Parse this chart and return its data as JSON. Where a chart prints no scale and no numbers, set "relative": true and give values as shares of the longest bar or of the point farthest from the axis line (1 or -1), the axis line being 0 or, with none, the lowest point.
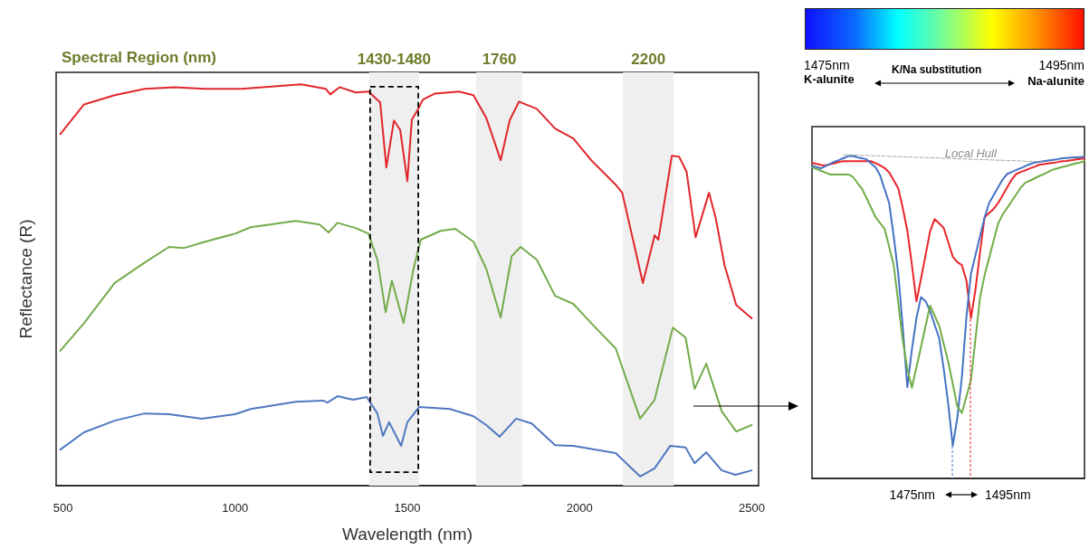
{
  "chart_data": [
    {
      "type": "line",
      "relative": true,
      "xlabel": "Wavelength (nm)",
      "ylabel": "Reflectance (R)",
      "xlim": [
        480,
        2520
      ],
      "xticks": [
        500,
        1000,
        1500,
        2000,
        2500
      ],
      "annotations": [
        "Spectral Region (nm)"
      ],
      "bands": [
        {
          "axis": "x",
          "from": 1389,
          "to": 1534,
          "label": "1430-1480",
          "color": "#efefef"
        },
        {
          "axis": "x",
          "from": 1700,
          "to": 1834,
          "label": "1760",
          "color": "#efefef"
        },
        {
          "axis": "x",
          "from": 2126,
          "to": 2274,
          "label": "2200",
          "color": "#efefef"
        }
      ],
      "series": [
        {
          "color": "#e0262b",
          "x": [
            492,
            561,
            650,
            737,
            824,
            913,
            1018,
            1192,
            1263,
            1276,
            1303,
            1350,
            1387,
            1421,
            1439,
            1461,
            1479,
            1500,
            1513,
            1532,
            1545,
            1579,
            1650,
            1692,
            1729,
            1771,
            1797,
            1824,
            1876,
            1929,
            1982,
            2034,
            2105,
            2124,
            2184,
            2218,
            2229,
            2268,
            2289,
            2311,
            2337,
            2376,
            2395,
            2421,
            2455,
            2500
          ],
          "values": [
            0.876,
            0.95,
            0.973,
            0.989,
            0.993,
            0.989,
            0.989,
            1.0,
            0.989,
            0.975,
            0.993,
            0.98,
            0.982,
            0.955,
            0.793,
            0.91,
            0.887,
            0.759,
            0.912,
            0.939,
            0.962,
            0.977,
            0.982,
            0.973,
            0.917,
            0.811,
            0.91,
            0.957,
            0.939,
            0.89,
            0.865,
            0.811,
            0.75,
            0.73,
            0.505,
            0.624,
            0.613,
            0.822,
            0.82,
            0.782,
            0.619,
            0.73,
            0.669,
            0.55,
            0.45,
            0.417
          ]
        },
        {
          "color": "#74ab4c",
          "x": [
            492,
            561,
            650,
            737,
            808,
            850,
            913,
            1000,
            1045,
            1176,
            1245,
            1271,
            1297,
            1350,
            1387,
            1413,
            1437,
            1455,
            1489,
            1518,
            1539,
            1597,
            1639,
            1692,
            1729,
            1771,
            1803,
            1829,
            1876,
            1929,
            1982,
            2034,
            2105,
            2176,
            2218,
            2271,
            2308,
            2334,
            2368,
            2413,
            2455,
            2500
          ],
          "values": [
            0.336,
            0.405,
            0.505,
            0.556,
            0.595,
            0.592,
            0.608,
            0.628,
            0.644,
            0.66,
            0.651,
            0.631,
            0.655,
            0.642,
            0.628,
            0.563,
            0.432,
            0.511,
            0.405,
            0.541,
            0.613,
            0.635,
            0.64,
            0.608,
            0.541,
            0.419,
            0.572,
            0.595,
            0.563,
            0.473,
            0.453,
            0.405,
            0.342,
            0.167,
            0.214,
            0.394,
            0.369,
            0.241,
            0.304,
            0.185,
            0.135,
            0.151
          ]
        },
        {
          "color": "#4f78c0",
          "x": [
            492,
            561,
            650,
            737,
            808,
            903,
            1000,
            1045,
            1176,
            1255,
            1268,
            1297,
            1342,
            1382,
            1413,
            1429,
            1447,
            1482,
            1500,
            1534,
            1624,
            1692,
            1729,
            1768,
            1816,
            1861,
            1929,
            1982,
            2105,
            2176,
            2218,
            2263,
            2308,
            2334,
            2368,
            2413,
            2453,
            2500
          ],
          "values": [
            0.09,
            0.133,
            0.162,
            0.18,
            0.178,
            0.167,
            0.178,
            0.191,
            0.209,
            0.212,
            0.207,
            0.223,
            0.214,
            0.221,
            0.18,
            0.124,
            0.158,
            0.099,
            0.158,
            0.196,
            0.191,
            0.173,
            0.151,
            0.122,
            0.167,
            0.155,
            0.101,
            0.099,
            0.081,
            0.023,
            0.043,
            0.099,
            0.095,
            0.056,
            0.083,
            0.038,
            0.027,
            0.038
          ]
        }
      ]
    },
    {
      "type": "line",
      "relative": true,
      "categories": [
        null,
        null,
        null,
        null,
        null,
        null,
        null,
        null,
        null,
        null,
        null,
        null,
        null,
        null,
        null,
        null,
        null,
        null,
        null,
        null,
        null,
        null,
        null,
        null,
        null,
        null,
        null,
        null,
        null,
        null,
        null,
        null,
        null,
        null,
        null,
        null,
        null,
        null,
        null,
        null,
        null,
        null,
        null,
        null,
        null,
        null,
        null,
        null,
        null,
        null,
        null,
        null,
        null,
        null,
        null,
        null,
        null,
        null,
        null,
        null,
        null
      ],
      "annotations": [
        "1475nm",
        "K-alunite",
        "K/Na substitution",
        "1495nm",
        "Na-alunite",
        "1475nm",
        "1495nm"
      ],
      "series": [
        {
          "color": "#e8262a",
          "values": [
            0.975,
            0.972,
            0.968,
            0.967,
            0.971,
            0.974,
            0.978,
            0.98,
            0.98,
            0.98,
            0.98,
            0.98,
            0.98,
            0.98,
            0.974,
            0.967,
            0.959,
            0.945,
            0.921,
            0.896,
            0.835,
            0.765,
            0.66,
            0.547,
            0.617,
            0.689,
            0.763,
            0.801,
            0.788,
            0.774,
            0.73,
            0.685,
            0.668,
            0.659,
            0.612,
            0.495,
            0.584,
            0.698,
            0.807,
            0.82,
            0.833,
            0.851,
            0.875,
            0.9,
            0.924,
            0.941,
            0.947,
            0.952,
            0.958,
            0.963,
            0.969,
            0.971,
            0.973,
            0.975,
            0.977,
            0.98,
            0.981,
            0.983,
            0.985,
            0.987,
            0.989
          ]
        },
        {
          "color": "#4472c4",
          "values": [
            0.966,
            0.962,
            0.958,
            0.965,
            0.972,
            0.979,
            0.984,
            0.99,
            0.996,
            0.996,
            0.992,
            0.989,
            0.986,
            0.973,
            0.961,
            0.936,
            0.893,
            0.85,
            0.748,
            0.632,
            0.464,
            0.282,
            0.399,
            0.495,
            0.56,
            0.548,
            0.517,
            0.475,
            0.433,
            0.339,
            0.23,
            0.101,
            0.187,
            0.312,
            0.498,
            0.632,
            0.69,
            0.748,
            0.806,
            0.851,
            0.875,
            0.9,
            0.924,
            0.941,
            0.947,
            0.953,
            0.959,
            0.965,
            0.971,
            0.976,
            0.978,
            0.98,
            0.982,
            0.984,
            0.986,
            0.989,
            0.99,
            0.991,
            0.992,
            0.993,
            0.994
          ]
        },
        {
          "color": "#70ad47",
          "values": [
            0.961,
            0.956,
            0.95,
            0.945,
            0.939,
            0.939,
            0.939,
            0.939,
            0.939,
            0.932,
            0.913,
            0.895,
            0.867,
            0.837,
            0.807,
            0.789,
            0.771,
            0.715,
            0.659,
            0.542,
            0.425,
            0.338,
            0.28,
            0.343,
            0.406,
            0.47,
            0.534,
            0.503,
            0.472,
            0.416,
            0.36,
            0.292,
            0.223,
            0.202,
            0.253,
            0.304,
            0.431,
            0.559,
            0.627,
            0.681,
            0.735,
            0.788,
            0.816,
            0.836,
            0.857,
            0.878,
            0.899,
            0.914,
            0.92,
            0.927,
            0.934,
            0.94,
            0.947,
            0.954,
            0.958,
            0.962,
            0.965,
            0.969,
            0.973,
            0.976,
            0.98
          ]
        },
        {
          "name": "Local Hull",
          "color": "#a6a6a6",
          "line_style": "dashed",
          "values": [
            null,
            null,
            null,
            null,
            null,
            null,
            null,
            1.0,
            1.0,
            0.999,
            0.999,
            0.998,
            0.998,
            0.997,
            0.997,
            0.996,
            0.996,
            0.995,
            0.995,
            0.994,
            0.994,
            0.993,
            0.993,
            0.992,
            0.992,
            0.991,
            0.991,
            0.99,
            0.99,
            0.989,
            0.989,
            0.988,
            0.988,
            0.987,
            0.987,
            0.986,
            0.986,
            0.985,
            0.985,
            0.984,
            0.984,
            0.983,
            0.983,
            0.982,
            0.982,
            0.981,
            0.981,
            0.98,
            0.98,
            0.979,
            0.979,
            0.978,
            null,
            null,
            null,
            null,
            null,
            null,
            null,
            null,
            null
          ]
        }
      ]
    }
  ]
}
